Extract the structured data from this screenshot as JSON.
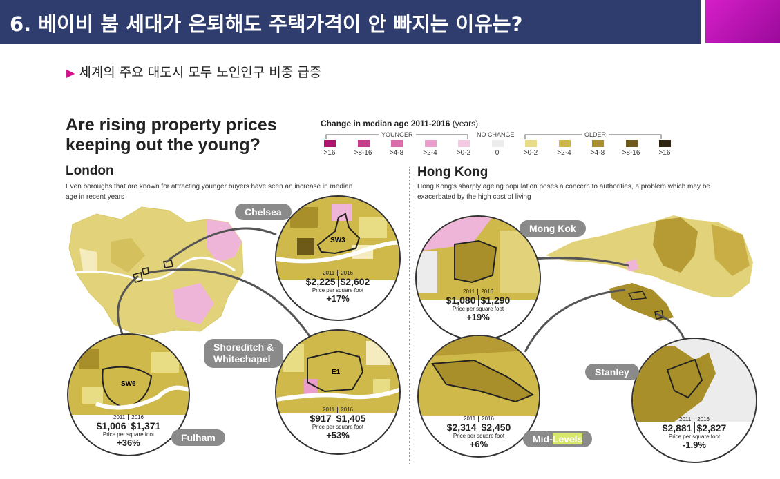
{
  "slide": {
    "title": "6. 베이비 붐 세대가 은퇴해도 주택가격이 안 빠지는 이유는?",
    "bullet": "세계의 주요 대도시 모두 노인인구 비중 급증"
  },
  "infographic": {
    "heading_line1": "Are rising property prices",
    "heading_line2": "keeping out the young?",
    "legend": {
      "title_bold": "Change in median age 2011-2016",
      "title_unit": "(years)",
      "younger_label": "YOUNGER",
      "nochange_label": "NO CHANGE",
      "older_label": "OLDER",
      "items": [
        {
          "label": ">16",
          "color": "#b3146f"
        },
        {
          "label": ">8-16",
          "color": "#c83a8a"
        },
        {
          "label": ">4-8",
          "color": "#dc69aa"
        },
        {
          "label": ">2-4",
          "color": "#ea9ccb"
        },
        {
          "label": ">0-2",
          "color": "#f4c9e2"
        },
        {
          "label": "0",
          "color": "#ececec"
        },
        {
          "label": ">0-2",
          "color": "#e8dc85"
        },
        {
          "label": ">2-4",
          "color": "#cdb845"
        },
        {
          "label": ">4-8",
          "color": "#a98f2a"
        },
        {
          "label": ">8-16",
          "color": "#6e5a18"
        },
        {
          "label": ">16",
          "color": "#2c2410"
        }
      ]
    },
    "london": {
      "name": "London",
      "desc_line1": "Even boroughs that are known for attracting younger buyers have seen an increase in median",
      "desc_line2": "age in recent years",
      "areas": {
        "chelsea": {
          "pill": "Chelsea",
          "code": "SW3",
          "year1": "2011",
          "year2": "2016",
          "price1": "$2,225",
          "price2": "$2,602",
          "ppsf": "Price per square foot",
          "change": "+17%"
        },
        "shoreditch": {
          "pill_line1": "Shoreditch &",
          "pill_line2": "Whitechapel",
          "code": "E1",
          "year1": "2011",
          "year2": "2016",
          "price1": "$917",
          "price2": "$1,405",
          "ppsf": "Price per square foot",
          "change": "+53%"
        },
        "fulham": {
          "pill": "Fulham",
          "code": "SW6",
          "year1": "2011",
          "year2": "2016",
          "price1": "$1,006",
          "price2": "$1,371",
          "ppsf": "Price per square foot",
          "change": "+36%"
        }
      }
    },
    "hongkong": {
      "name": "Hong Kong",
      "desc_line1": "Hong Kong's sharply ageing population poses a concern to authorities, a problem which may be",
      "desc_line2": "exacerbated by the high cost of living",
      "areas": {
        "mongkok": {
          "pill": "Mong Kok",
          "year1": "2011",
          "year2": "2016",
          "price1": "$1,080",
          "price2": "$1,290",
          "ppsf": "Price per square foot",
          "change": "+19%"
        },
        "midlevels": {
          "pill_a": "Mid-",
          "pill_b": "Levels",
          "year1": "2011",
          "year2": "2016",
          "price1": "$2,314",
          "price2": "$2,450",
          "ppsf": "Price per square foot",
          "change": "+6%"
        },
        "stanley": {
          "pill": "Stanley",
          "year1": "2011",
          "year2": "2016",
          "price1": "$2,881",
          "price2": "$2,827",
          "ppsf": "Price per square foot",
          "change": "-1.9%"
        }
      }
    }
  }
}
